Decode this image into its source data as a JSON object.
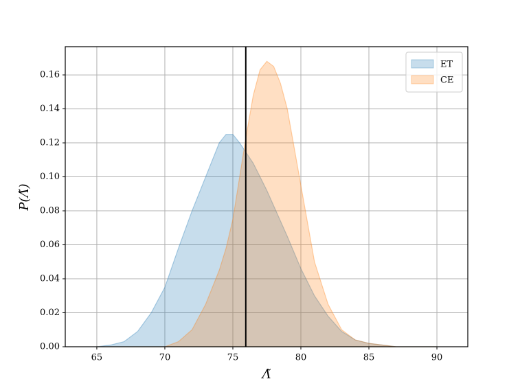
{
  "chart_data": {
    "type": "area",
    "x_label": "Λ̃",
    "y_label": "P(Λ̃)",
    "x": [
      65,
      66,
      67,
      68,
      69,
      70,
      71,
      72,
      73,
      74,
      74.5,
      75,
      75.5,
      76,
      76.5,
      77,
      77.5,
      78,
      78.5,
      79,
      80,
      81,
      82,
      83,
      84,
      85,
      86,
      87,
      88,
      89,
      90
    ],
    "series": [
      {
        "name": "ET",
        "color": "#1f77b4",
        "values": [
          0,
          0.001,
          0.003,
          0.009,
          0.02,
          0.035,
          0.058,
          0.08,
          0.1,
          0.12,
          0.125,
          0.125,
          0.12,
          0.114,
          0.108,
          0.1,
          0.092,
          0.083,
          0.074,
          0.065,
          0.046,
          0.03,
          0.018,
          0.009,
          0.004,
          0.002,
          0.001,
          0,
          0,
          0,
          0
        ]
      },
      {
        "name": "CE",
        "color": "#ff7f0e",
        "values": [
          0,
          0,
          0,
          0,
          0,
          0,
          0.003,
          0.01,
          0.025,
          0.045,
          0.058,
          0.075,
          0.1,
          0.125,
          0.148,
          0.163,
          0.168,
          0.165,
          0.155,
          0.14,
          0.095,
          0.05,
          0.025,
          0.01,
          0.004,
          0.002,
          0.001,
          0,
          0,
          0,
          0
        ]
      }
    ],
    "vline": 75.95,
    "xlim": [
      62.68,
      92.27
    ],
    "ylim": [
      0,
      0.1766
    ],
    "xticks": [
      65,
      70,
      75,
      80,
      85,
      90
    ],
    "yticks": [
      {
        "value": 0,
        "label": "0.00"
      },
      {
        "value": 0.02,
        "label": "0.02"
      },
      {
        "value": 0.04,
        "label": "0.04"
      },
      {
        "value": 0.06,
        "label": "0.06"
      },
      {
        "value": 0.08,
        "label": "0.08"
      },
      {
        "value": 0.1,
        "label": "0.10"
      },
      {
        "value": 0.12,
        "label": "0.12"
      },
      {
        "value": 0.14,
        "label": "0.14"
      },
      {
        "value": 0.16,
        "label": "0.16"
      }
    ],
    "grid": true,
    "legend": "upper right"
  }
}
